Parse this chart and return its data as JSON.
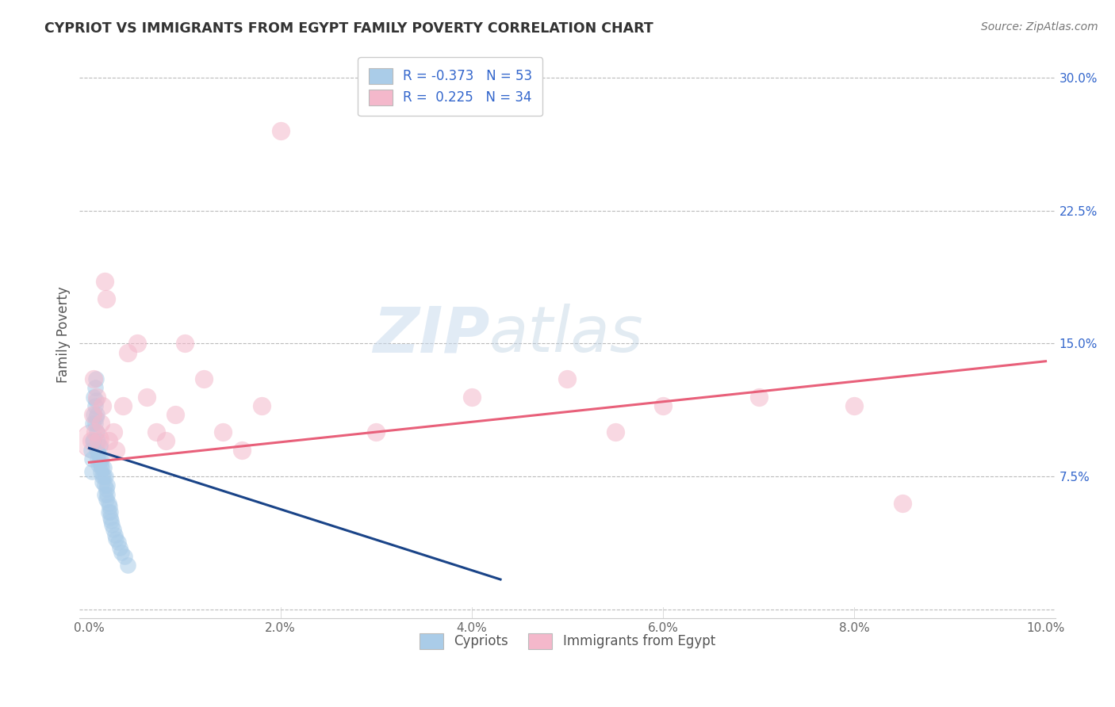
{
  "title": "CYPRIOT VS IMMIGRANTS FROM EGYPT FAMILY POVERTY CORRELATION CHART",
  "source": "Source: ZipAtlas.com",
  "xlabel_cypriots": "Cypriots",
  "xlabel_egypt": "Immigrants from Egypt",
  "ylabel": "Family Poverty",
  "xlim": [
    -0.001,
    0.101
  ],
  "ylim": [
    -0.005,
    0.315
  ],
  "xticks": [
    0.0,
    0.02,
    0.04,
    0.06,
    0.08,
    0.1
  ],
  "xtick_labels": [
    "0.0%",
    "2.0%",
    "4.0%",
    "6.0%",
    "8.0%",
    "10.0%"
  ],
  "yticks": [
    0.0,
    0.075,
    0.15,
    0.225,
    0.3
  ],
  "ytick_labels": [
    "",
    "7.5%",
    "15.0%",
    "22.5%",
    "30.0%"
  ],
  "r_cypriot": -0.373,
  "n_cypriot": 53,
  "r_egypt": 0.225,
  "n_egypt": 34,
  "cypriot_color": "#aacce8",
  "egypt_color": "#f4b8cb",
  "cypriot_line_color": "#1a4488",
  "egypt_line_color": "#e8607a",
  "legend_color": "#3366cc",
  "background_color": "#ffffff",
  "grid_color": "#bbbbbb",
  "watermark_zip": "ZIP",
  "watermark_atlas": "atlas",
  "cypriot_x": [
    0.0002,
    0.0003,
    0.0003,
    0.0004,
    0.0004,
    0.0005,
    0.0005,
    0.0005,
    0.0006,
    0.0006,
    0.0006,
    0.0007,
    0.0007,
    0.0007,
    0.0008,
    0.0008,
    0.0008,
    0.0009,
    0.0009,
    0.001,
    0.001,
    0.0011,
    0.0011,
    0.0012,
    0.0012,
    0.0013,
    0.0013,
    0.0014,
    0.0014,
    0.0015,
    0.0015,
    0.0016,
    0.0016,
    0.0017,
    0.0018,
    0.0018,
    0.0019,
    0.0019,
    0.002,
    0.002,
    0.0021,
    0.0022,
    0.0022,
    0.0023,
    0.0024,
    0.0025,
    0.0027,
    0.0028,
    0.003,
    0.0032,
    0.0034,
    0.0037,
    0.004
  ],
  "cypriot_y": [
    0.09,
    0.085,
    0.078,
    0.105,
    0.095,
    0.12,
    0.11,
    0.095,
    0.125,
    0.115,
    0.105,
    0.13,
    0.118,
    0.108,
    0.11,
    0.1,
    0.09,
    0.095,
    0.085,
    0.088,
    0.082,
    0.092,
    0.085,
    0.082,
    0.078,
    0.085,
    0.08,
    0.075,
    0.072,
    0.08,
    0.075,
    0.07,
    0.065,
    0.075,
    0.068,
    0.062,
    0.07,
    0.065,
    0.06,
    0.055,
    0.058,
    0.055,
    0.052,
    0.05,
    0.048,
    0.045,
    0.042,
    0.04,
    0.038,
    0.035,
    0.032,
    0.03,
    0.025
  ],
  "egypt_x": [
    0.0002,
    0.0004,
    0.0005,
    0.0006,
    0.0008,
    0.001,
    0.0012,
    0.0014,
    0.0016,
    0.0018,
    0.002,
    0.0025,
    0.0028,
    0.0035,
    0.004,
    0.005,
    0.006,
    0.007,
    0.008,
    0.009,
    0.01,
    0.012,
    0.014,
    0.016,
    0.018,
    0.02,
    0.03,
    0.04,
    0.05,
    0.055,
    0.06,
    0.07,
    0.08,
    0.085
  ],
  "egypt_y": [
    0.095,
    0.11,
    0.13,
    0.1,
    0.12,
    0.095,
    0.105,
    0.115,
    0.185,
    0.175,
    0.095,
    0.1,
    0.09,
    0.115,
    0.145,
    0.15,
    0.12,
    0.1,
    0.095,
    0.11,
    0.15,
    0.13,
    0.1,
    0.09,
    0.115,
    0.27,
    0.1,
    0.12,
    0.13,
    0.1,
    0.115,
    0.12,
    0.115,
    0.06
  ],
  "cypriot_line_x0": 0.0,
  "cypriot_line_x1": 0.043,
  "cypriot_line_y0": 0.091,
  "cypriot_line_y1": 0.017,
  "egypt_line_x0": 0.0,
  "egypt_line_x1": 0.1,
  "egypt_line_y0": 0.083,
  "egypt_line_y1": 0.14
}
